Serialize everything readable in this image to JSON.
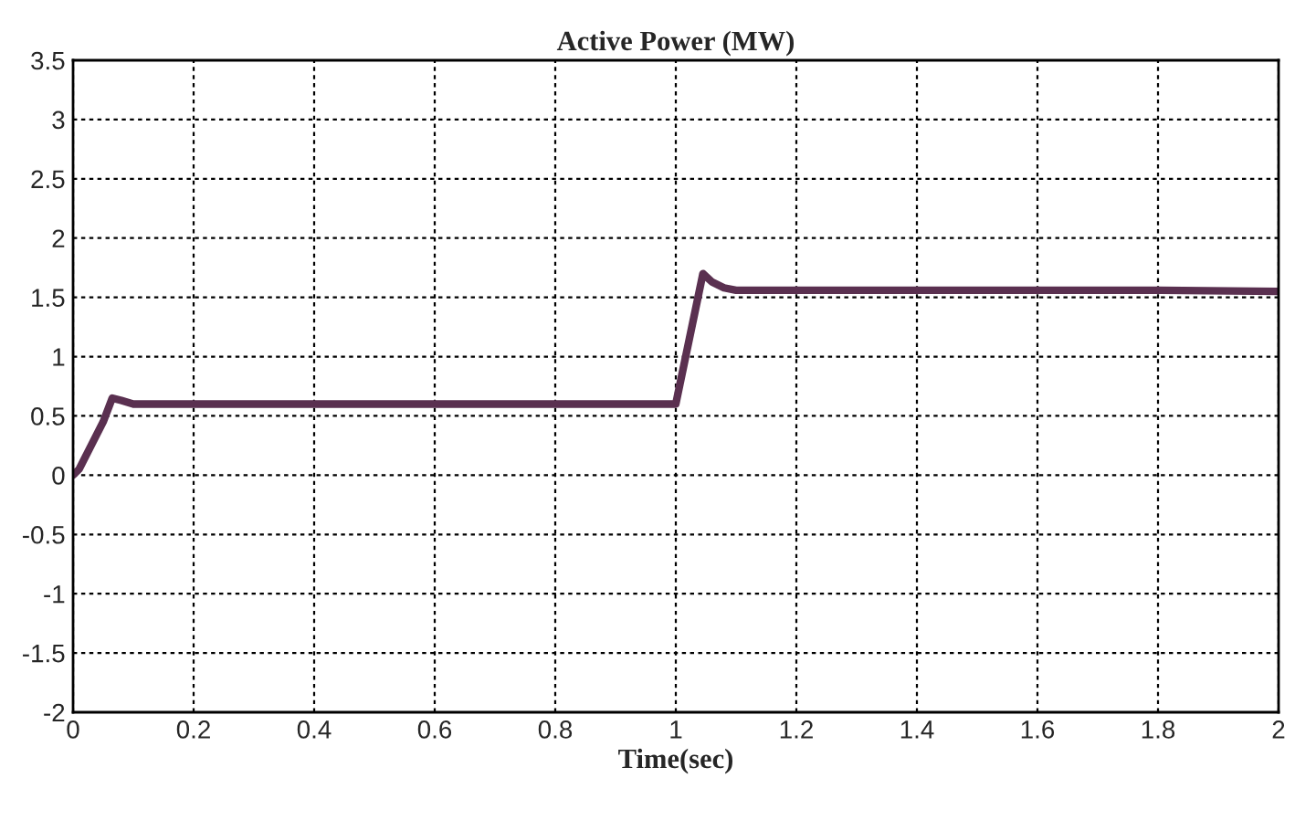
{
  "chart_data": {
    "type": "line",
    "title": "Active Power (MW)",
    "xlabel": "Time(sec)",
    "x": [
      0,
      0.01,
      0.03,
      0.05,
      0.065,
      0.08,
      0.1,
      0.2,
      0.4,
      0.6,
      0.8,
      1.0,
      1.045,
      1.06,
      1.08,
      1.1,
      1.2,
      1.4,
      1.6,
      1.8,
      2.0
    ],
    "series": [
      {
        "color": "#5a3050",
        "values": [
          0,
          0.05,
          0.25,
          0.45,
          0.65,
          0.63,
          0.6,
          0.6,
          0.6,
          0.6,
          0.6,
          0.6,
          1.7,
          1.63,
          1.58,
          1.56,
          1.56,
          1.56,
          1.56,
          1.56,
          1.55
        ]
      }
    ],
    "xlim": [
      0,
      2
    ],
    "xticks": [
      0,
      0.2,
      0.4,
      0.6,
      0.8,
      1,
      1.2,
      1.4,
      1.6,
      1.8,
      2
    ],
    "ylim": [
      -2,
      3.5
    ],
    "yticks": [
      -2,
      -1.5,
      -1,
      -0.5,
      0,
      0.5,
      1,
      1.5,
      2,
      2.5,
      3,
      3.5
    ],
    "grid": true,
    "line_style": "solid",
    "marker": "none",
    "legend": false
  }
}
